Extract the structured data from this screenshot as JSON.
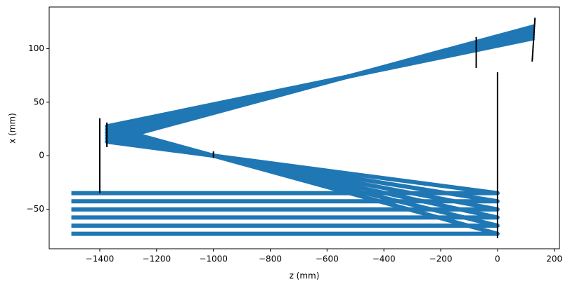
{
  "chart_data": {
    "type": "line",
    "xlabel": "z (mm)",
    "ylabel": "x (mm)",
    "xlim": [
      -1578,
      218
    ],
    "ylim": [
      -87,
      139
    ],
    "xticks": [
      {
        "value": -1400,
        "label": "−1400"
      },
      {
        "value": -1200,
        "label": "−1200"
      },
      {
        "value": -1000,
        "label": "−1000"
      },
      {
        "value": -800,
        "label": "−800"
      },
      {
        "value": -600,
        "label": "−600"
      },
      {
        "value": -400,
        "label": "−400"
      },
      {
        "value": -200,
        "label": "−200"
      },
      0,
      200
    ],
    "yticks": [
      {
        "value": -50,
        "label": "−50"
      },
      0,
      50,
      100
    ],
    "series": [
      {
        "color": "#1f77b4",
        "x": [
          -1500,
          0,
          -1375,
          130
        ],
        "values": [
          -35,
          -35,
          13.1,
          121
        ]
      },
      {
        "color": "#1f77b4",
        "x": [
          -1500,
          0,
          -1375,
          130
        ],
        "values": [
          -42.6,
          -42.6,
          16,
          118.8
        ]
      },
      {
        "color": "#1f77b4",
        "x": [
          -1500,
          0,
          -1375,
          130
        ],
        "values": [
          -50.2,
          -50.2,
          18.8,
          116.6
        ]
      },
      {
        "color": "#1f77b4",
        "x": [
          -1500,
          0,
          -1375,
          130
        ],
        "values": [
          -57.8,
          -57.8,
          21.7,
          114.4
        ]
      },
      {
        "color": "#1f77b4",
        "x": [
          -1500,
          0,
          -1375,
          130
        ],
        "values": [
          -65.4,
          -65.4,
          24.5,
          112.2
        ]
      },
      {
        "color": "#1f77b4",
        "x": [
          -1500,
          0,
          -1375,
          130
        ],
        "values": [
          -73,
          -73,
          27.4,
          110
        ]
      },
      {
        "color": "#000000",
        "x": [
          0,
          0
        ],
        "values": [
          -77,
          78
        ]
      },
      {
        "color": "#000000",
        "x": [
          -1400,
          -1400
        ],
        "values": [
          -35,
          35
        ]
      },
      {
        "color": "#000000",
        "x": [
          -1375,
          -1375
        ],
        "values": [
          8,
          31
        ]
      },
      {
        "color": "#000000",
        "x": [
          -1000,
          -1000
        ],
        "values": [
          -2,
          4
        ]
      },
      {
        "color": "#000000",
        "x": [
          -75,
          -75
        ],
        "values": [
          82,
          111
        ]
      },
      {
        "color": "#000000",
        "x": [
          122,
          132
        ],
        "values": [
          88,
          129
        ]
      }
    ]
  }
}
